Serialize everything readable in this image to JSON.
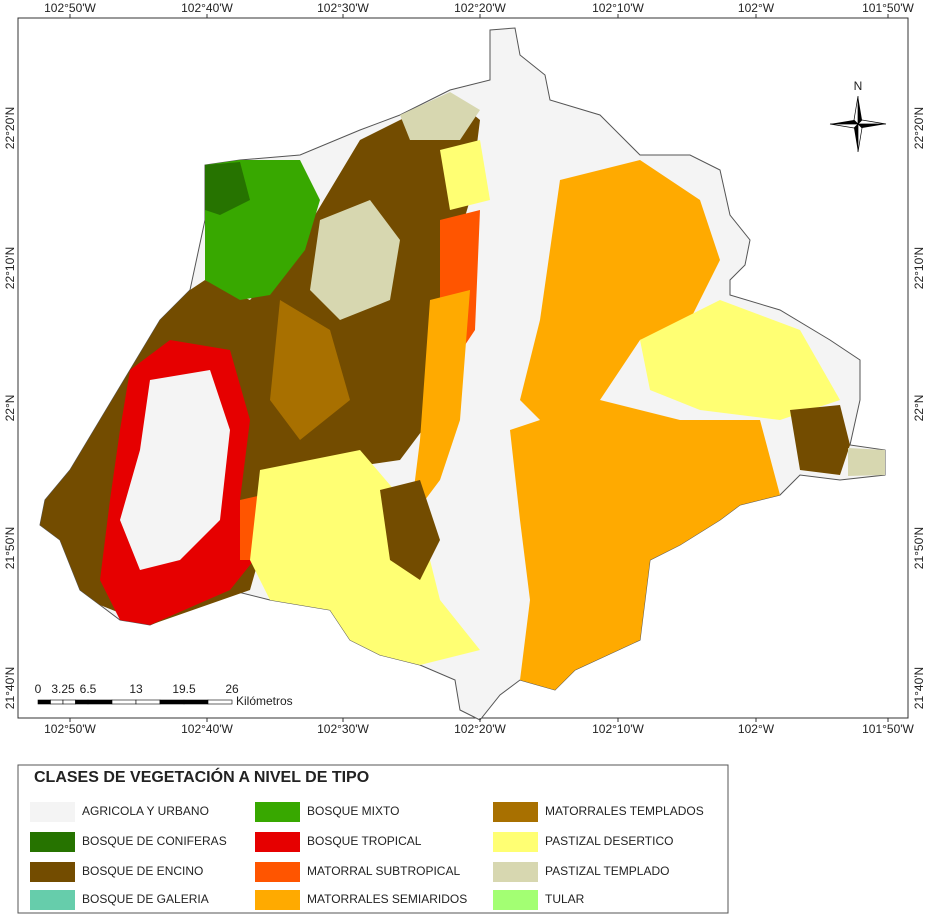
{
  "map": {
    "top_labels": [
      "102°50'W",
      "102°40'W",
      "102°30'W",
      "102°20'W",
      "102°10'W",
      "102°W",
      "101°50'W"
    ],
    "bottom_labels": [
      "102°50'W",
      "102°40'W",
      "102°30'W",
      "102°20'W",
      "102°10'W",
      "102°W",
      "101°50'W"
    ],
    "left_labels": [
      "22°20'N",
      "22°10'N",
      "22°N",
      "21°50'N",
      "21°40'N"
    ],
    "right_labels": [
      "22°20'N",
      "22°10'N",
      "22°N",
      "21°50'N",
      "21°40'N"
    ],
    "north": "N",
    "scale": {
      "labels": [
        "0",
        "3.25",
        "6.5",
        "13",
        "19.5",
        "26"
      ],
      "unit": "Kilómetros"
    }
  },
  "legend": {
    "title": "CLASES DE VEGETACIÓN A NIVEL DE TIPO",
    "items": [
      {
        "label": "AGRICOLA Y URBANO",
        "color": "#f4f4f4"
      },
      {
        "label": "BOSQUE DE CONIFERAS",
        "color": "#267300"
      },
      {
        "label": "BOSQUE DE ENCINO",
        "color": "#734c00"
      },
      {
        "label": "BOSQUE DE GALERIA",
        "color": "#66cdab"
      },
      {
        "label": "BOSQUE MIXTO",
        "color": "#38a800"
      },
      {
        "label": "BOSQUE TROPICAL",
        "color": "#e60000"
      },
      {
        "label": "MATORRAL SUBTROPICAL",
        "color": "#ff5500"
      },
      {
        "label": "MATORRALES SEMIARIDOS",
        "color": "#ffaa00"
      },
      {
        "label": "MATORRALES TEMPLADOS",
        "color": "#a87000"
      },
      {
        "label": "PASTIZAL DESERTICO",
        "color": "#ffff73"
      },
      {
        "label": "PASTIZAL TEMPLADO",
        "color": "#d7d7b0"
      },
      {
        "label": "TULAR",
        "color": "#a3ff73"
      }
    ]
  }
}
